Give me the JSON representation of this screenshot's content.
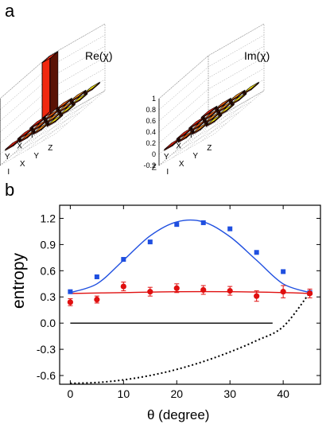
{
  "panel_labels": {
    "a": "a",
    "b": "b"
  },
  "bar3d": {
    "re_title": "Re(χ)",
    "im_title": "Im(χ)",
    "z_ticks": [
      "1",
      "0.8",
      "0.6",
      "0.4",
      "0.2",
      "0",
      "-0.2"
    ],
    "axis_labels": [
      "I",
      "X",
      "Y",
      "Z"
    ]
  },
  "chart_data": [
    {
      "type": "bar3d",
      "title": "Re(χ)",
      "rows": [
        "I",
        "X",
        "Y",
        "Z"
      ],
      "cols": [
        "I",
        "X",
        "Y",
        "Z"
      ],
      "zlim": [
        -0.2,
        1.0
      ],
      "values": [
        [
          1.0,
          0.0,
          0.0,
          0.0
        ],
        [
          0.0,
          0.0,
          0.0,
          0.0
        ],
        [
          0.0,
          0.0,
          0.0,
          0.0
        ],
        [
          0.0,
          0.0,
          0.0,
          0.0
        ]
      ]
    },
    {
      "type": "bar3d",
      "title": "Im(χ)",
      "rows": [
        "I",
        "X",
        "Y",
        "Z"
      ],
      "cols": [
        "I",
        "X",
        "Y",
        "Z"
      ],
      "zlim": [
        -0.2,
        1.0
      ],
      "values": [
        [
          0.0,
          0.0,
          0.0,
          0.0
        ],
        [
          0.0,
          0.0,
          0.0,
          0.0
        ],
        [
          0.0,
          0.0,
          0.0,
          0.0
        ],
        [
          0.0,
          0.0,
          0.0,
          0.0
        ]
      ]
    },
    {
      "type": "scatter",
      "xlabel": "θ (degree)",
      "ylabel": "entropy",
      "xlim": [
        -2,
        47
      ],
      "ylim": [
        -0.7,
        1.35
      ],
      "x_ticks": [
        0,
        10,
        20,
        30,
        40
      ],
      "y_ticks": [
        -0.6,
        -0.3,
        0.0,
        0.3,
        0.6,
        0.9,
        1.2
      ],
      "y_tick_labels": [
        "-0.6",
        "-0.3",
        "0.0",
        "0.3",
        "0.6",
        "0.9",
        "1.2"
      ],
      "colors": {
        "blue": "#1f4fe0",
        "red": "#e01010",
        "black": "#000000"
      },
      "series": [
        {
          "marker": "square",
          "color": "#1f4fe0",
          "x": [
            0,
            5,
            10,
            15,
            20,
            25,
            30,
            35,
            40,
            45
          ],
          "y": [
            0.36,
            0.53,
            0.73,
            0.93,
            1.13,
            1.15,
            1.08,
            0.81,
            0.59,
            0.35
          ]
        },
        {
          "marker": "circle",
          "color": "#e01010",
          "x": [
            0,
            5,
            10,
            15,
            20,
            25,
            30,
            35,
            40,
            45
          ],
          "y": [
            0.24,
            0.27,
            0.42,
            0.36,
            0.4,
            0.38,
            0.37,
            0.31,
            0.36,
            0.34
          ],
          "yerr": [
            0.04,
            0.04,
            0.05,
            0.05,
            0.05,
            0.05,
            0.05,
            0.06,
            0.07,
            0.05
          ]
        },
        {
          "line": "solid",
          "color": "#1f4fe0",
          "x": [
            0,
            5,
            10,
            15,
            20,
            25,
            30,
            35,
            40,
            45
          ],
          "y": [
            0.35,
            0.45,
            0.72,
            1.0,
            1.16,
            1.16,
            0.99,
            0.72,
            0.45,
            0.35
          ]
        },
        {
          "line": "solid",
          "color": "#e01010",
          "x": [
            0,
            10,
            20,
            30,
            40,
            45
          ],
          "y": [
            0.34,
            0.35,
            0.36,
            0.36,
            0.35,
            0.34
          ]
        },
        {
          "line": "solid",
          "color": "#000000",
          "x": [
            0,
            38
          ],
          "y": [
            0.0,
            0.0
          ]
        },
        {
          "line": "dotted",
          "color": "#000000",
          "x": [
            0,
            5,
            10,
            15,
            20,
            25,
            30,
            35,
            40,
            45
          ],
          "y": [
            -0.69,
            -0.68,
            -0.65,
            -0.6,
            -0.53,
            -0.44,
            -0.33,
            -0.2,
            -0.04,
            0.35
          ]
        }
      ]
    }
  ]
}
